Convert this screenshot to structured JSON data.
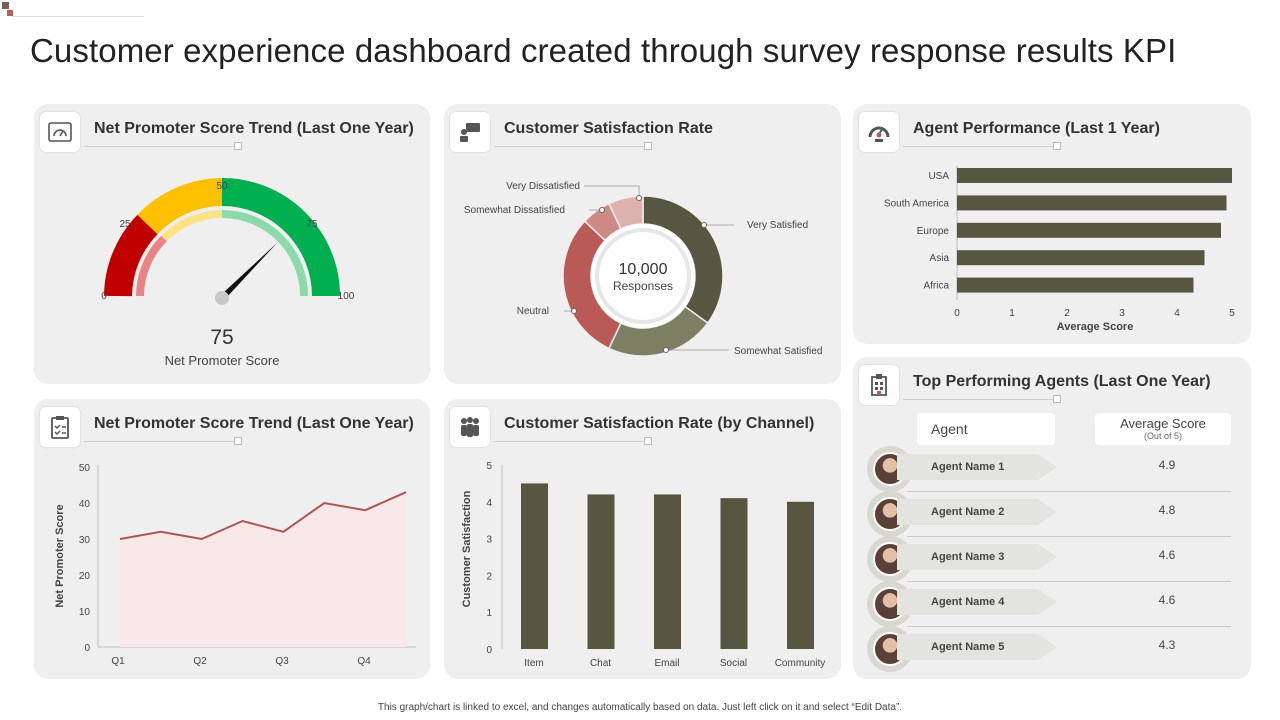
{
  "title": "Customer experience dashboard created through survey response results KPI",
  "footer": "This graph/chart is linked to excel, and changes automatically based on data. Just left click on it and select “Edit Data”.",
  "colors": {
    "dark_olive": "#565641",
    "red": "#c00000",
    "yellow": "#ffc000",
    "green": "#00b050",
    "line_red": "#b0544f",
    "card_bg": "#efefef"
  },
  "nps_gauge": {
    "title": "Net Promoter Score Trend (Last One Year)",
    "icon": "gauge-icon",
    "ticks": [
      "0",
      "25",
      "50",
      "75",
      "100"
    ],
    "value": 75,
    "value_label": "75",
    "caption": "Net Promoter Score"
  },
  "csat_donut": {
    "title": "Customer Satisfaction Rate",
    "icon": "chat-icon",
    "center_value": "10,000",
    "center_label": "Responses",
    "segments": [
      {
        "label": "Very Satisfied",
        "value": 35,
        "color": "#565641"
      },
      {
        "label": "Somewhat Satisfied",
        "value": 22,
        "color": "#7d7f63"
      },
      {
        "label": "Neutral",
        "value": 30,
        "color": "#b95a57"
      },
      {
        "label": "Somewhat Dissatisfied",
        "value": 6,
        "color": "#d08a86"
      },
      {
        "label": "Very Dissatisfied",
        "value": 7,
        "color": "#ddb1ae"
      }
    ]
  },
  "agent_performance": {
    "title": "Agent Performance (Last 1 Year)",
    "icon": "speedometer-icon",
    "xlabel": "Average Score",
    "x_ticks": [
      "0",
      "1",
      "2",
      "3",
      "4",
      "5"
    ]
  },
  "nps_trend": {
    "title": "Net Promoter Score Trend (Last One Year)",
    "icon": "clipboard-icon",
    "ylabel": "Net Promoter Score",
    "y_ticks": [
      "0",
      "10",
      "20",
      "30",
      "40",
      "50"
    ],
    "x_ticks": [
      "Q1",
      "Q2",
      "Q3",
      "Q4"
    ]
  },
  "csat_channel": {
    "title": "Customer Satisfaction Rate (by Channel)",
    "icon": "people-icon",
    "ylabel": "Customer Satisfaction",
    "y_ticks": [
      "0",
      "1",
      "2",
      "3",
      "4",
      "5"
    ]
  },
  "top_agents": {
    "title": "Top Performing Agents (Last One Year)",
    "icon": "building-icon",
    "col_agent": "Agent",
    "col_score": "Average Score",
    "col_score_sub": "(Out of 5)",
    "rows": [
      {
        "name": "Agent Name 1",
        "score": "4.9"
      },
      {
        "name": "Agent Name 2",
        "score": "4.8"
      },
      {
        "name": "Agent Name 3",
        "score": "4.6"
      },
      {
        "name": "Agent Name 4",
        "score": "4.6"
      },
      {
        "name": "Agent Name 5",
        "score": "4.3"
      }
    ]
  },
  "chart_data": [
    {
      "type": "bar",
      "orientation": "horizontal",
      "categories": [
        "USA",
        "South America",
        "Europe",
        "Asia",
        "Africa"
      ],
      "values": [
        5.0,
        4.9,
        4.8,
        4.5,
        4.3
      ],
      "xlabel": "Average Score",
      "xlim": [
        0,
        5
      ],
      "grid": false
    },
    {
      "type": "area",
      "x": [
        "Q1",
        "",
        "Q2",
        "",
        "Q3",
        "",
        "Q4",
        ""
      ],
      "values": [
        30,
        32,
        30,
        35,
        32,
        40,
        38,
        43
      ],
      "ylabel": "Net Promoter Score",
      "ylim": [
        0,
        50
      ],
      "grid": false
    },
    {
      "type": "bar",
      "categories": [
        "Item",
        "Chat",
        "Email",
        "Social",
        "Community"
      ],
      "values": [
        4.5,
        4.2,
        4.2,
        4.1,
        4.0
      ],
      "ylabel": "Customer Satisfaction",
      "ylim": [
        0,
        5
      ],
      "grid": false
    }
  ]
}
